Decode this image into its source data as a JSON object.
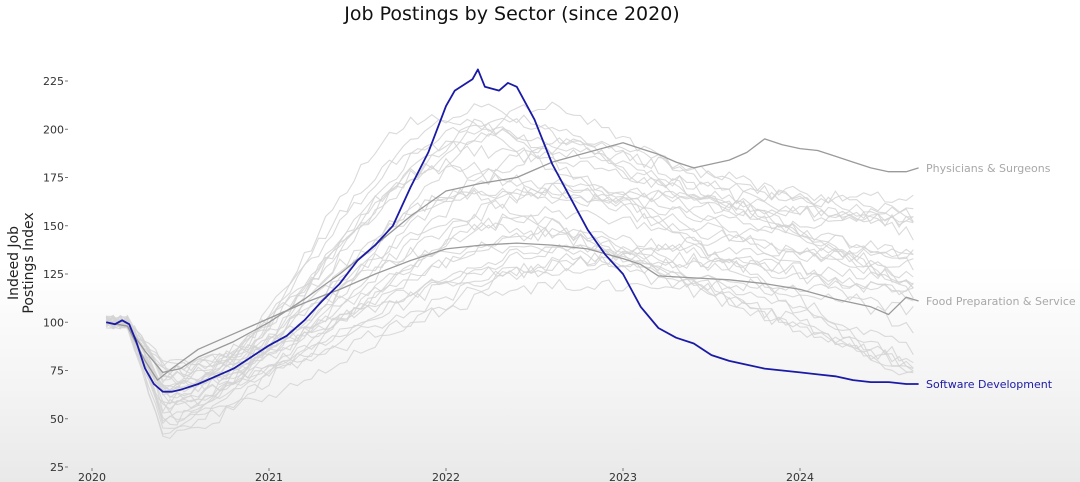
{
  "chart_data": {
    "type": "line",
    "title": "Job Postings by Sector (since 2020)",
    "xlabel": "",
    "ylabel": "Indeed Job Postings Index",
    "ylabel_lines": [
      "Indeed Job",
      "Postings Index"
    ],
    "ylim": [
      25,
      235
    ],
    "xlim": [
      2020,
      2024.75
    ],
    "yticks": [
      25,
      50,
      75,
      100,
      125,
      150,
      175,
      200,
      225
    ],
    "xticks": [
      2020,
      2021,
      2022,
      2023,
      2024
    ],
    "xtick_labels": [
      "2020",
      "2021",
      "2022",
      "2023",
      "2024"
    ],
    "grid": false,
    "legend": "direct labels at line ends (right)",
    "highlight_color": "#1a1aa6",
    "label_gray": "#a8a8a8",
    "series": [
      {
        "name": "Software Development",
        "color": "#1a1aa6",
        "role": "highlight",
        "points": [
          [
            2020.08,
            100
          ],
          [
            2020.13,
            99
          ],
          [
            2020.17,
            101
          ],
          [
            2020.21,
            99
          ],
          [
            2020.25,
            90
          ],
          [
            2020.3,
            76
          ],
          [
            2020.35,
            68
          ],
          [
            2020.4,
            64
          ],
          [
            2020.45,
            64
          ],
          [
            2020.5,
            65
          ],
          [
            2020.6,
            68
          ],
          [
            2020.7,
            72
          ],
          [
            2020.8,
            76
          ],
          [
            2020.9,
            82
          ],
          [
            2021.0,
            88
          ],
          [
            2021.1,
            93
          ],
          [
            2021.2,
            101
          ],
          [
            2021.3,
            111
          ],
          [
            2021.4,
            120
          ],
          [
            2021.5,
            132
          ],
          [
            2021.6,
            140
          ],
          [
            2021.7,
            150
          ],
          [
            2021.8,
            170
          ],
          [
            2021.9,
            188
          ],
          [
            2022.0,
            212
          ],
          [
            2022.05,
            220
          ],
          [
            2022.1,
            223
          ],
          [
            2022.15,
            226
          ],
          [
            2022.18,
            231
          ],
          [
            2022.22,
            222
          ],
          [
            2022.3,
            220
          ],
          [
            2022.35,
            224
          ],
          [
            2022.4,
            222
          ],
          [
            2022.5,
            205
          ],
          [
            2022.6,
            182
          ],
          [
            2022.7,
            165
          ],
          [
            2022.8,
            148
          ],
          [
            2022.9,
            135
          ],
          [
            2023.0,
            125
          ],
          [
            2023.1,
            108
          ],
          [
            2023.2,
            97
          ],
          [
            2023.3,
            92
          ],
          [
            2023.4,
            89
          ],
          [
            2023.5,
            83
          ],
          [
            2023.6,
            80
          ],
          [
            2023.7,
            78
          ],
          [
            2023.8,
            76
          ],
          [
            2023.9,
            75
          ],
          [
            2024.0,
            74
          ],
          [
            2024.1,
            73
          ],
          [
            2024.2,
            72
          ],
          [
            2024.3,
            70
          ],
          [
            2024.4,
            69
          ],
          [
            2024.5,
            69
          ],
          [
            2024.6,
            68
          ],
          [
            2024.67,
            68
          ]
        ]
      },
      {
        "name": "Physicians & Surgeons",
        "color": "#9a9a9a",
        "role": "labeled",
        "points": [
          [
            2020.08,
            100
          ],
          [
            2020.2,
            98
          ],
          [
            2020.3,
            85
          ],
          [
            2020.4,
            74
          ],
          [
            2020.5,
            76
          ],
          [
            2020.6,
            82
          ],
          [
            2020.8,
            90
          ],
          [
            2021.0,
            100
          ],
          [
            2021.2,
            112
          ],
          [
            2021.4,
            125
          ],
          [
            2021.6,
            140
          ],
          [
            2021.8,
            155
          ],
          [
            2022.0,
            168
          ],
          [
            2022.2,
            172
          ],
          [
            2022.4,
            175
          ],
          [
            2022.6,
            183
          ],
          [
            2022.8,
            188
          ],
          [
            2023.0,
            193
          ],
          [
            2023.1,
            190
          ],
          [
            2023.2,
            187
          ],
          [
            2023.3,
            183
          ],
          [
            2023.4,
            180
          ],
          [
            2023.5,
            182
          ],
          [
            2023.6,
            184
          ],
          [
            2023.7,
            188
          ],
          [
            2023.8,
            195
          ],
          [
            2023.9,
            192
          ],
          [
            2024.0,
            190
          ],
          [
            2024.1,
            189
          ],
          [
            2024.2,
            186
          ],
          [
            2024.3,
            183
          ],
          [
            2024.4,
            180
          ],
          [
            2024.5,
            178
          ],
          [
            2024.6,
            178
          ],
          [
            2024.67,
            180
          ]
        ]
      },
      {
        "name": "Food Preparation & Service",
        "color": "#9a9a9a",
        "role": "labeled",
        "points": [
          [
            2020.08,
            100
          ],
          [
            2020.2,
            98
          ],
          [
            2020.3,
            80
          ],
          [
            2020.37,
            70
          ],
          [
            2020.45,
            76
          ],
          [
            2020.6,
            86
          ],
          [
            2020.8,
            94
          ],
          [
            2021.0,
            102
          ],
          [
            2021.2,
            110
          ],
          [
            2021.4,
            117
          ],
          [
            2021.6,
            125
          ],
          [
            2021.8,
            132
          ],
          [
            2022.0,
            138
          ],
          [
            2022.2,
            140
          ],
          [
            2022.4,
            141
          ],
          [
            2022.6,
            140
          ],
          [
            2022.8,
            138
          ],
          [
            2023.0,
            133
          ],
          [
            2023.1,
            130
          ],
          [
            2023.2,
            124
          ],
          [
            2023.4,
            123
          ],
          [
            2023.6,
            122
          ],
          [
            2023.8,
            120
          ],
          [
            2024.0,
            117
          ],
          [
            2024.2,
            112
          ],
          [
            2024.4,
            108
          ],
          [
            2024.5,
            104
          ],
          [
            2024.6,
            113
          ],
          [
            2024.67,
            111
          ]
        ]
      }
    ]
  }
}
